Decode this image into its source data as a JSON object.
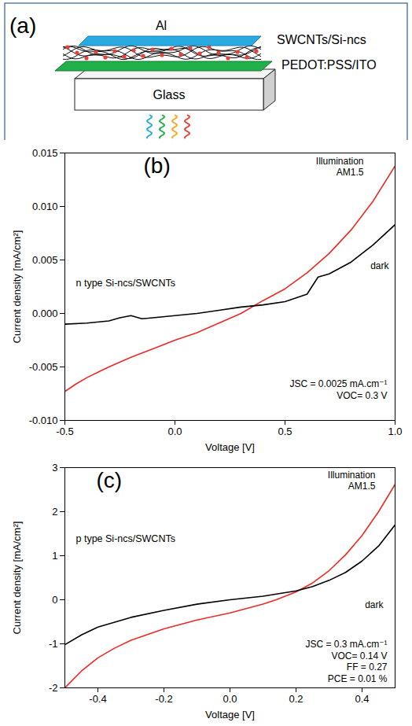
{
  "diagram": {
    "title": "(a)",
    "labels": {
      "electrode": "Al",
      "active_layer": "SWCNTs/Si-ncs",
      "anode": "PEDOT:PSS/ITO",
      "substrate": "Glass"
    }
  },
  "chart_data": [
    {
      "type": "line",
      "title": "(b)",
      "x_label": "Voltage [V]",
      "y_label": "Current density [mA/cm²]",
      "xlim": [
        -0.5,
        1.0
      ],
      "xticks": [
        -0.5,
        {
          "value": 0,
          "label": "0.0"
        },
        0.5,
        {
          "value": 1,
          "label": "1.0"
        }
      ],
      "ylim": [
        -0.01,
        0.015
      ],
      "yticks": [
        {
          "value": -0.01,
          "label": "-0.010"
        },
        {
          "value": -0.005,
          "label": "-0.005"
        },
        {
          "value": 0,
          "label": "0.000"
        },
        {
          "value": 0.005,
          "label": "0.005"
        },
        {
          "value": 0.01,
          "label": "0.010"
        },
        {
          "value": 0.015,
          "label": "0.015"
        }
      ],
      "grid": false,
      "annotations": [
        "n type Si-ncs/SWCNTs",
        "JSC = 0.0025 mA.cm⁻¹",
        "VOC= 0.3 V"
      ],
      "series": [
        {
          "name": "Illumination AM1.5",
          "color": "#ee2a24",
          "x": [
            -0.5,
            -0.45,
            -0.4,
            -0.35,
            -0.3,
            -0.2,
            -0.1,
            0,
            0.1,
            0.2,
            0.3,
            0.4,
            0.5,
            0.6,
            0.7,
            0.8,
            0.9,
            1.0
          ],
          "values": [
            -0.0073,
            -0.0066,
            -0.006,
            -0.0055,
            -0.005,
            -0.0041,
            -0.0033,
            -0.0025,
            -0.0018,
            -0.0009,
            0,
            0.0012,
            0.0023,
            0.0038,
            0.0056,
            0.0078,
            0.0105,
            0.0138
          ]
        },
        {
          "name": "dark",
          "color": "#000000",
          "x": [
            -0.5,
            -0.4,
            -0.3,
            -0.25,
            -0.2,
            -0.15,
            -0.1,
            0,
            0.1,
            0.2,
            0.3,
            0.4,
            0.5,
            0.6,
            0.65,
            0.7,
            0.8,
            0.9,
            1.0
          ],
          "values": [
            -0.001,
            -0.0009,
            -0.0007,
            -0.0004,
            -0.0002,
            -0.0005,
            -0.0004,
            -0.0002,
            0,
            0.0003,
            0.0006,
            0.0008,
            0.0011,
            0.0018,
            0.0034,
            0.0037,
            0.0048,
            0.0064,
            0.0083
          ]
        }
      ]
    },
    {
      "type": "line",
      "title": "(c)",
      "x_label": "Voltage [V]",
      "y_label": "Current density [mA/cm²]",
      "xlim": [
        -0.5,
        0.5
      ],
      "xticks": [
        -0.4,
        -0.2,
        {
          "value": 0,
          "label": "0.0"
        },
        0.2,
        0.4
      ],
      "ylim": [
        -2,
        3
      ],
      "yticks": [
        -2,
        -1,
        0,
        1,
        2,
        3
      ],
      "grid": false,
      "annotations": [
        "p type Si-ncs/SWCNTs",
        "JSC = 0.3 mA.cm⁻¹",
        "VOC= 0.14 V",
        "FF = 0.27",
        "PCE = 0.01 %"
      ],
      "series": [
        {
          "name": "Illumination AM1.5",
          "color": "#ee2a24",
          "x": [
            -0.5,
            -0.45,
            -0.4,
            -0.35,
            -0.3,
            -0.2,
            -0.1,
            0,
            0.1,
            0.14,
            0.2,
            0.25,
            0.3,
            0.35,
            0.4,
            0.45,
            0.5
          ],
          "values": [
            -2.0,
            -1.62,
            -1.32,
            -1.1,
            -0.92,
            -0.66,
            -0.46,
            -0.3,
            -0.1,
            0,
            0.18,
            0.38,
            0.66,
            1.02,
            1.46,
            2.0,
            2.62
          ]
        },
        {
          "name": "dark",
          "color": "#000000",
          "x": [
            -0.5,
            -0.45,
            -0.4,
            -0.3,
            -0.2,
            -0.1,
            0,
            0.1,
            0.2,
            0.25,
            0.3,
            0.35,
            0.4,
            0.45,
            0.5
          ],
          "values": [
            -1.02,
            -0.8,
            -0.62,
            -0.4,
            -0.24,
            -0.1,
            0,
            0.08,
            0.2,
            0.3,
            0.44,
            0.62,
            0.88,
            1.22,
            1.7
          ]
        }
      ]
    }
  ]
}
